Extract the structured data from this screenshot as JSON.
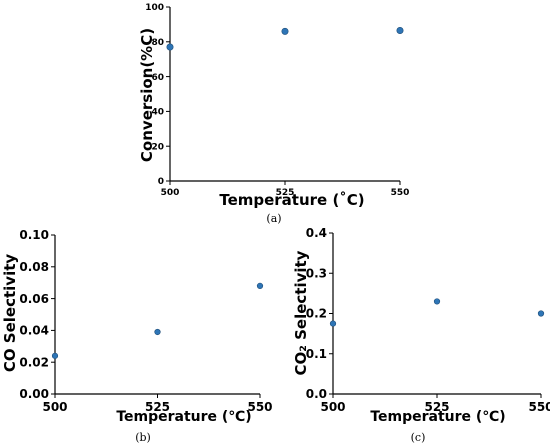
{
  "chart_data": [
    {
      "type": "scatter",
      "x": [
        500,
        525,
        550
      ],
      "y": [
        77,
        86,
        86.5
      ],
      "xlabel": "Temperature (˚C)",
      "ylabel": "Conversion(%C)",
      "xlim": [
        500,
        550
      ],
      "ylim": [
        0,
        100
      ],
      "xticks": [
        "500",
        "525",
        "550"
      ],
      "yticks": [
        "0",
        "20",
        "40",
        "60",
        "80",
        "100"
      ],
      "caption": "(a)",
      "grid": false,
      "marker_color": "#2E75B6"
    },
    {
      "type": "scatter",
      "x": [
        500,
        525,
        550
      ],
      "y": [
        0.024,
        0.039,
        0.068
      ],
      "xlabel": "Temperature (℃)",
      "ylabel": "CO Selectivity",
      "xlim": [
        500,
        550
      ],
      "ylim": [
        0,
        0.1
      ],
      "xticks": [
        "500",
        "525",
        "550"
      ],
      "yticks": [
        "0.00",
        "0.02",
        "0.04",
        "0.06",
        "0.08",
        "0.10"
      ],
      "caption": "(b)",
      "grid": false,
      "marker_color": "#2E75B6"
    },
    {
      "type": "scatter",
      "x": [
        500,
        525,
        550
      ],
      "y": [
        0.175,
        0.23,
        0.2
      ],
      "xlabel": "Temperature (℃)",
      "ylabel": "CO₂ Selectivity",
      "xlim": [
        500,
        550
      ],
      "ylim": [
        0,
        0.4
      ],
      "xticks": [
        "500",
        "525",
        "550"
      ],
      "yticks": [
        "0.0",
        "0.1",
        "0.2",
        "0.3",
        "0.4"
      ],
      "caption": "(c)",
      "grid": false,
      "marker_color": "#2E75B6"
    }
  ]
}
